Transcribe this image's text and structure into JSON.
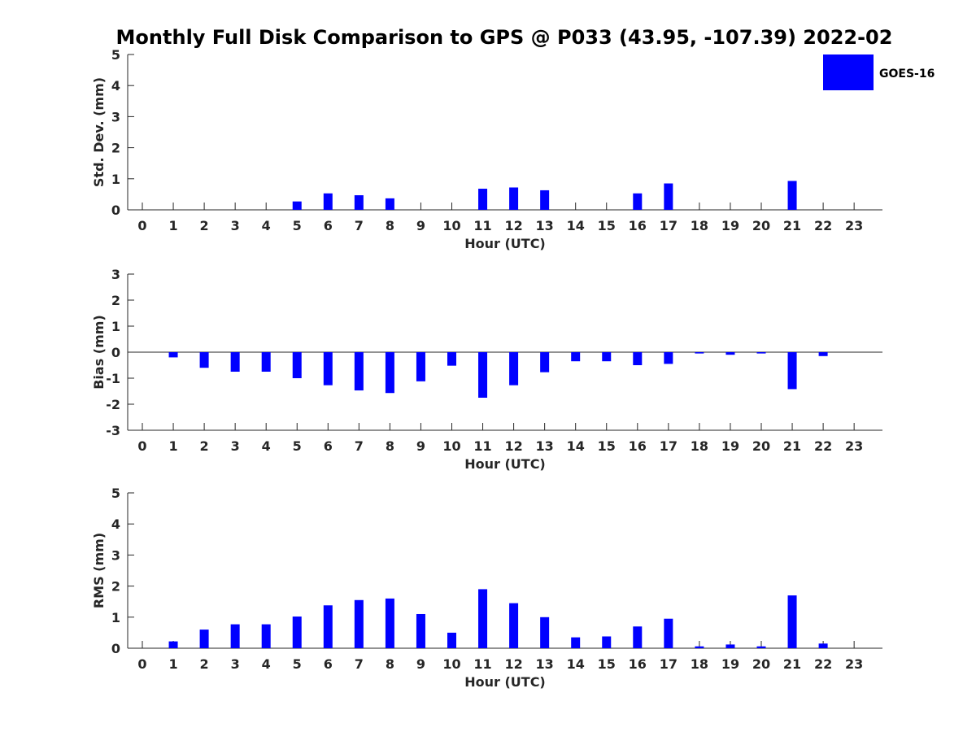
{
  "figure": {
    "title": "Monthly Full Disk Comparison to GPS @ P033 (43.95, -107.39) 2022-02"
  },
  "legend": {
    "label": "GOES-16",
    "color": "#0000ff"
  },
  "chart_data": [
    {
      "type": "bar",
      "title": "Monthly Full Disk Comparison to GPS @ P033 (43.95, -107.39) 2022-02",
      "xlabel": "Hour (UTC)",
      "ylabel": "Std. Dev. (mm)",
      "categories": [
        0,
        1,
        2,
        3,
        4,
        5,
        6,
        7,
        8,
        9,
        10,
        11,
        12,
        13,
        14,
        15,
        16,
        17,
        18,
        19,
        20,
        21,
        22,
        23
      ],
      "ylim": [
        0,
        5
      ],
      "yticks": [
        0,
        1,
        2,
        3,
        4,
        5
      ],
      "series": [
        {
          "name": "GOES-16",
          "values": [
            null,
            null,
            null,
            null,
            null,
            0.27,
            0.53,
            0.47,
            0.37,
            null,
            null,
            0.68,
            0.72,
            0.63,
            null,
            null,
            0.53,
            0.85,
            null,
            null,
            null,
            0.93,
            null,
            null
          ]
        }
      ],
      "grid": false,
      "legend": "top-right"
    },
    {
      "type": "bar",
      "xlabel": "Hour (UTC)",
      "ylabel": "Bias (mm)",
      "categories": [
        0,
        1,
        2,
        3,
        4,
        5,
        6,
        7,
        8,
        9,
        10,
        11,
        12,
        13,
        14,
        15,
        16,
        17,
        18,
        19,
        20,
        21,
        22,
        23
      ],
      "ylim": [
        -3,
        3
      ],
      "yticks": [
        -3,
        -2,
        -1,
        0,
        1,
        2,
        3
      ],
      "series": [
        {
          "name": "GOES-16",
          "values": [
            null,
            -0.2,
            -0.6,
            -0.75,
            -0.75,
            -1.0,
            -1.27,
            -1.47,
            -1.57,
            -1.12,
            -0.52,
            -1.75,
            -1.27,
            -0.77,
            -0.35,
            -0.35,
            -0.5,
            -0.45,
            -0.05,
            -0.1,
            -0.05,
            -1.42,
            -0.15,
            null
          ]
        }
      ],
      "grid": false,
      "zero_line": true
    },
    {
      "type": "bar",
      "xlabel": "Hour (UTC)",
      "ylabel": "RMS (mm)",
      "categories": [
        0,
        1,
        2,
        3,
        4,
        5,
        6,
        7,
        8,
        9,
        10,
        11,
        12,
        13,
        14,
        15,
        16,
        17,
        18,
        19,
        20,
        21,
        22,
        23
      ],
      "ylim": [
        0,
        5
      ],
      "yticks": [
        0,
        1,
        2,
        3,
        4,
        5
      ],
      "series": [
        {
          "name": "GOES-16",
          "values": [
            null,
            0.22,
            0.6,
            0.77,
            0.77,
            1.02,
            1.38,
            1.55,
            1.6,
            1.1,
            0.5,
            1.9,
            1.45,
            1.0,
            0.35,
            0.38,
            0.7,
            0.95,
            0.06,
            0.12,
            0.06,
            1.7,
            0.15,
            null
          ]
        }
      ],
      "grid": false
    }
  ]
}
